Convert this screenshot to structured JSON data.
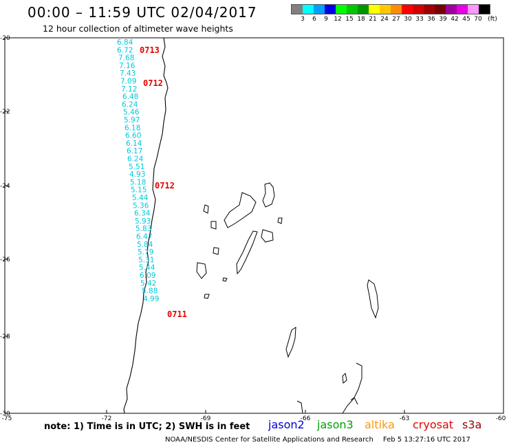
{
  "header": {
    "title": "00:00 – 11:59 UTC 02/04/2017",
    "subtitle": "12 hour collection of altimeter wave heights"
  },
  "legend": {
    "colors": [
      "#808080",
      "#00ffff",
      "#00a0ff",
      "#0000e6",
      "#00ff00",
      "#00c800",
      "#009600",
      "#ffff00",
      "#ffc800",
      "#ff8c00",
      "#ff0000",
      "#d20000",
      "#a00000",
      "#780000",
      "#a000a0",
      "#e600e6",
      "#ff96ff",
      "#000000"
    ],
    "tick_labels": [
      "3",
      "6",
      "9",
      "12",
      "15",
      "18",
      "21",
      "24",
      "27",
      "30",
      "33",
      "36",
      "39",
      "42",
      "45",
      "70",
      "(ft)"
    ]
  },
  "map": {
    "lat_labels": [
      "-20",
      "-22",
      "-24",
      "-26",
      "-28",
      "-30"
    ],
    "lon_labels": [
      "-75",
      "-72",
      "-69",
      "-66",
      "-63",
      "-60"
    ],
    "swh_values": [
      "6.84",
      "6.72",
      "7.68",
      "7.16",
      "7.43",
      "7.09",
      "7.12",
      "6.48",
      "6.24",
      "5.46",
      "5.97",
      "6.18",
      "6.60",
      "6.14",
      "6.17",
      "6.24",
      "5.51",
      "4.93",
      "5.18",
      "5.15",
      "5.44",
      "5.36",
      "6.34",
      "5.93",
      "5.83",
      "6.47",
      "5.84",
      "5.79",
      "5.31",
      "5.44",
      "6.09",
      "5.42",
      "5.88",
      "4.99"
    ],
    "time_labels": [
      "0713",
      "0712",
      "0712",
      "0711"
    ],
    "swh_color": "#00c8dc",
    "time_color": "#e60000"
  },
  "footer": {
    "note": "note:  1) Time is in UTC;  2) SWH is in feet",
    "satellites": [
      {
        "name": "jason2",
        "color": "#0000cc"
      },
      {
        "name": "jason3",
        "color": "#00a000"
      },
      {
        "name": "altika",
        "color": "#ff9600"
      },
      {
        "name": "cryosat",
        "color": "#e60000"
      },
      {
        "name": "s3a",
        "color": "#a00000"
      }
    ],
    "credit": "NOAA/NESDIS Center for Satellite Applications and Research",
    "timestamp": "Feb  5 13:27:16 UTC 2017"
  }
}
